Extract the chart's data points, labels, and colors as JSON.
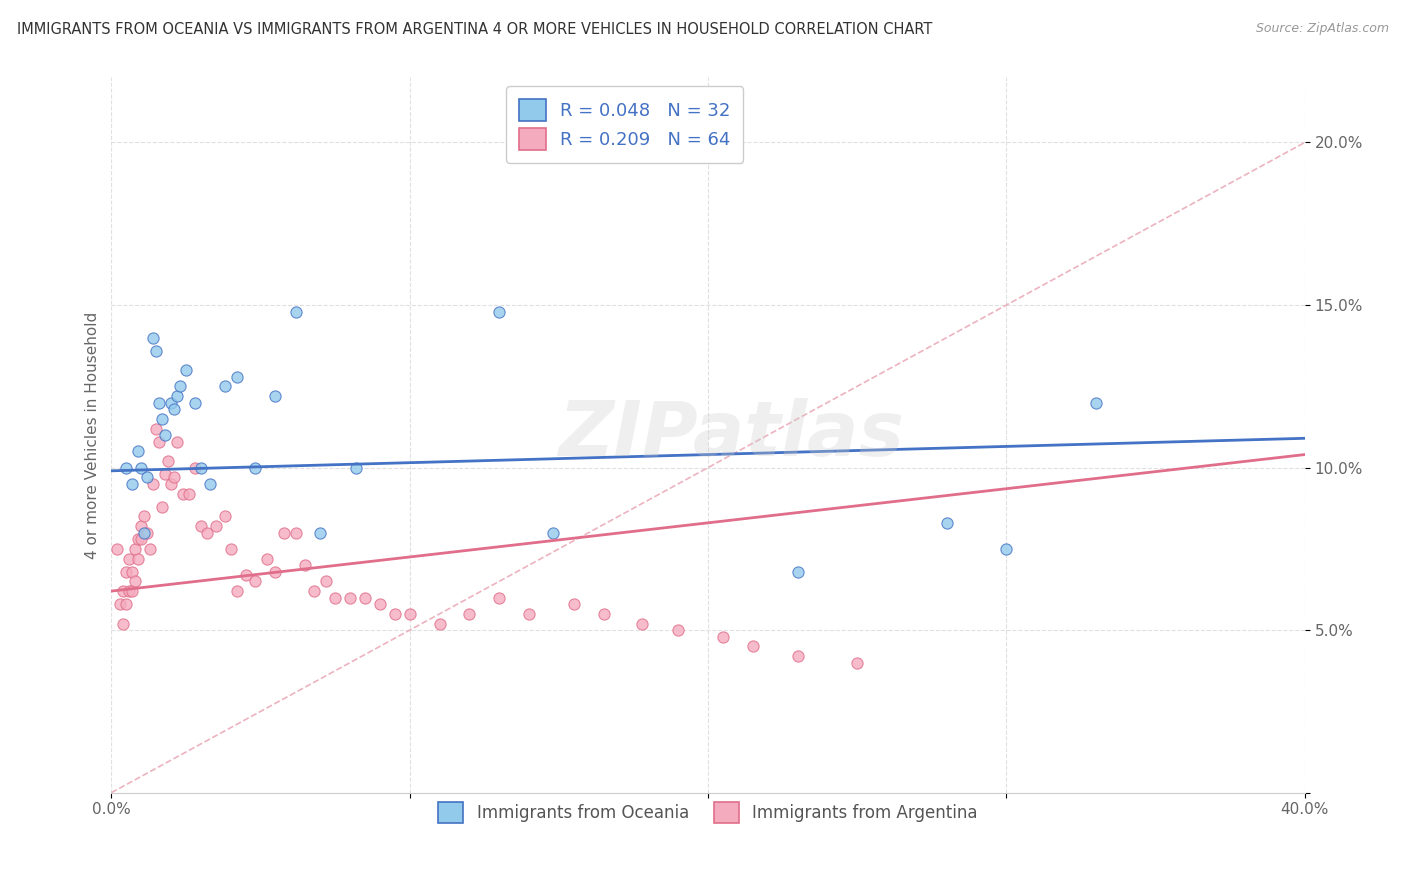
{
  "title": "IMMIGRANTS FROM OCEANIA VS IMMIGRANTS FROM ARGENTINA 4 OR MORE VEHICLES IN HOUSEHOLD CORRELATION CHART",
  "source": "Source: ZipAtlas.com",
  "ylabel": "4 or more Vehicles in Household",
  "xlim": [
    0.0,
    0.4
  ],
  "ylim": [
    0.0,
    0.22
  ],
  "xticks": [
    0.0,
    0.1,
    0.2,
    0.3,
    0.4
  ],
  "xticklabels": [
    "0.0%",
    "",
    "",
    "",
    "40.0%"
  ],
  "yticks": [
    0.0,
    0.05,
    0.1,
    0.15,
    0.2
  ],
  "yticklabels": [
    "",
    "5.0%",
    "10.0%",
    "15.0%",
    "20.0%"
  ],
  "legend_label1": "R = 0.048   N = 32",
  "legend_label2": "R = 0.209   N = 64",
  "legend_series1": "Immigrants from Oceania",
  "legend_series2": "Immigrants from Argentina",
  "color_oceania": "#92CAEC",
  "color_argentina": "#F4ABBE",
  "trendline_oceania": "#4472C4",
  "trendline_argentina": "#E06E8A",
  "trendline_ref_color": "#E8A0B0",
  "watermark": "ZIPatlas",
  "background_color": "#FFFFFF",
  "grid_color": "#DDDDDD",
  "oceania_x": [
    0.005,
    0.007,
    0.009,
    0.01,
    0.011,
    0.012,
    0.014,
    0.015,
    0.016,
    0.017,
    0.018,
    0.02,
    0.021,
    0.022,
    0.023,
    0.025,
    0.028,
    0.03,
    0.033,
    0.038,
    0.042,
    0.048,
    0.055,
    0.062,
    0.07,
    0.082,
    0.13,
    0.148,
    0.23,
    0.28,
    0.3,
    0.33
  ],
  "oceania_y": [
    0.1,
    0.095,
    0.105,
    0.1,
    0.08,
    0.097,
    0.14,
    0.136,
    0.12,
    0.115,
    0.11,
    0.12,
    0.118,
    0.122,
    0.125,
    0.13,
    0.12,
    0.1,
    0.095,
    0.125,
    0.128,
    0.1,
    0.122,
    0.148,
    0.08,
    0.1,
    0.148,
    0.08,
    0.068,
    0.083,
    0.075,
    0.12
  ],
  "argentina_x": [
    0.002,
    0.003,
    0.004,
    0.004,
    0.005,
    0.005,
    0.006,
    0.006,
    0.007,
    0.007,
    0.008,
    0.008,
    0.009,
    0.009,
    0.01,
    0.01,
    0.011,
    0.012,
    0.013,
    0.014,
    0.015,
    0.016,
    0.017,
    0.018,
    0.019,
    0.02,
    0.021,
    0.022,
    0.024,
    0.026,
    0.028,
    0.03,
    0.032,
    0.035,
    0.038,
    0.04,
    0.042,
    0.045,
    0.048,
    0.052,
    0.055,
    0.058,
    0.062,
    0.065,
    0.068,
    0.072,
    0.075,
    0.08,
    0.085,
    0.09,
    0.095,
    0.1,
    0.11,
    0.12,
    0.13,
    0.14,
    0.155,
    0.165,
    0.178,
    0.19,
    0.205,
    0.215,
    0.23,
    0.25
  ],
  "argentina_y": [
    0.075,
    0.058,
    0.052,
    0.062,
    0.068,
    0.058,
    0.062,
    0.072,
    0.068,
    0.062,
    0.065,
    0.075,
    0.078,
    0.072,
    0.078,
    0.082,
    0.085,
    0.08,
    0.075,
    0.095,
    0.112,
    0.108,
    0.088,
    0.098,
    0.102,
    0.095,
    0.097,
    0.108,
    0.092,
    0.092,
    0.1,
    0.082,
    0.08,
    0.082,
    0.085,
    0.075,
    0.062,
    0.067,
    0.065,
    0.072,
    0.068,
    0.08,
    0.08,
    0.07,
    0.062,
    0.065,
    0.06,
    0.06,
    0.06,
    0.058,
    0.055,
    0.055,
    0.052,
    0.055,
    0.06,
    0.055,
    0.058,
    0.055,
    0.052,
    0.05,
    0.048,
    0.045,
    0.042,
    0.04
  ],
  "blue_line_x0": 0.0,
  "blue_line_y0": 0.099,
  "blue_line_x1": 0.4,
  "blue_line_y1": 0.109,
  "pink_line_x0": 0.0,
  "pink_line_y0": 0.062,
  "pink_line_x1": 0.4,
  "pink_line_y1": 0.104,
  "ref_line_x0": 0.0,
  "ref_line_y0": 0.0,
  "ref_line_x1": 0.4,
  "ref_line_y1": 0.2
}
